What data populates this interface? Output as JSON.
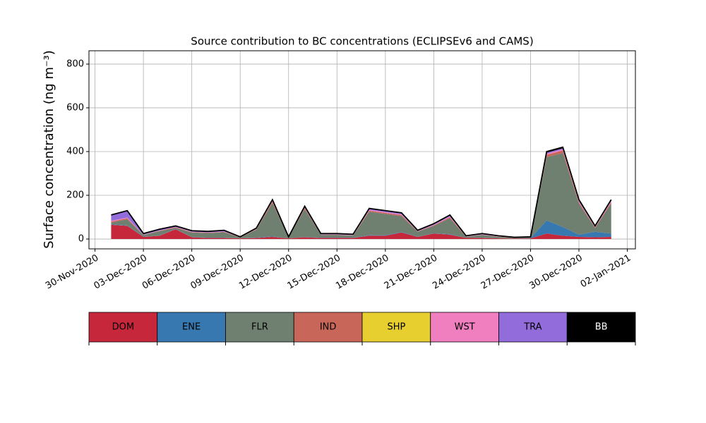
{
  "chart_data": {
    "type": "stacked_area",
    "title": "Source contribution to BC concentrations (ECLIPSEv6 and CAMS)",
    "y_label": "Surface concentration (ng m⁻³)",
    "x": [
      "2020-12-01",
      "2020-12-02",
      "2020-12-03",
      "2020-12-04",
      "2020-12-05",
      "2020-12-06",
      "2020-12-07",
      "2020-12-08",
      "2020-12-09",
      "2020-12-10",
      "2020-12-11",
      "2020-12-12",
      "2020-12-13",
      "2020-12-14",
      "2020-12-15",
      "2020-12-16",
      "2020-12-17",
      "2020-12-18",
      "2020-12-19",
      "2020-12-20",
      "2020-12-21",
      "2020-12-22",
      "2020-12-23",
      "2020-12-24",
      "2020-12-25",
      "2020-12-26",
      "2020-12-27",
      "2020-12-28",
      "2020-12-29",
      "2020-12-30",
      "2020-12-31",
      "2021-01-01"
    ],
    "series": [
      {
        "name": "DOM",
        "color": "#c6273a",
        "values": [
          65,
          60,
          10,
          15,
          45,
          8,
          5,
          5,
          3,
          5,
          10,
          3,
          8,
          5,
          5,
          5,
          15,
          15,
          30,
          10,
          25,
          20,
          5,
          5,
          3,
          2,
          3,
          25,
          15,
          10,
          8,
          10
        ]
      },
      {
        "name": "ENE",
        "color": "#3878b0",
        "values": [
          2,
          2,
          1,
          1,
          1,
          1,
          1,
          1,
          0,
          1,
          2,
          0,
          1,
          1,
          1,
          1,
          2,
          2,
          2,
          1,
          1,
          2,
          0,
          1,
          0,
          0,
          1,
          60,
          40,
          10,
          25,
          15
        ]
      },
      {
        "name": "FLR",
        "color": "#6f8070",
        "values": [
          8,
          28,
          7,
          20,
          5,
          21,
          21,
          25,
          4,
          37,
          153,
          4,
          128,
          13,
          13,
          10,
          108,
          98,
          73,
          22,
          34,
          73,
          5,
          13,
          7,
          3,
          3,
          290,
          338,
          142,
          17,
          138
        ]
      },
      {
        "name": "IND",
        "color": "#c8665a",
        "values": [
          5,
          5,
          1,
          2,
          3,
          2,
          2,
          2,
          1,
          2,
          6,
          1,
          5,
          1,
          1,
          1,
          5,
          5,
          5,
          2,
          3,
          5,
          1,
          1,
          1,
          1,
          1,
          10,
          12,
          6,
          3,
          6
        ]
      },
      {
        "name": "SHP",
        "color": "#e6cf2e",
        "values": [
          0,
          0,
          0,
          0,
          0,
          0,
          0,
          0,
          0,
          0,
          0,
          0,
          0,
          0,
          0,
          0,
          0,
          0,
          0,
          0,
          0,
          0,
          0,
          0,
          0,
          0,
          0,
          0,
          0,
          0,
          0,
          0
        ]
      },
      {
        "name": "WST",
        "color": "#f07fbf",
        "values": [
          3,
          3,
          1,
          1,
          1,
          1,
          1,
          1,
          0,
          1,
          3,
          0,
          3,
          1,
          1,
          1,
          3,
          3,
          3,
          1,
          2,
          3,
          1,
          1,
          1,
          0,
          0,
          5,
          5,
          4,
          2,
          4
        ]
      },
      {
        "name": "TRA",
        "color": "#936cdb",
        "values": [
          25,
          30,
          4,
          5,
          4,
          4,
          4,
          5,
          1,
          3,
          4,
          1,
          3,
          3,
          3,
          3,
          5,
          5,
          5,
          3,
          4,
          5,
          2,
          3,
          2,
          1,
          1,
          5,
          5,
          5,
          3,
          4
        ]
      },
      {
        "name": "BB",
        "color": "#000000",
        "values": [
          2,
          2,
          1,
          1,
          1,
          1,
          1,
          1,
          1,
          1,
          2,
          1,
          2,
          1,
          1,
          1,
          2,
          2,
          2,
          1,
          1,
          2,
          1,
          1,
          1,
          1,
          1,
          5,
          5,
          3,
          2,
          3
        ]
      }
    ],
    "xlim": [
      "2020-11-29T15:00",
      "2021-01-02T12:00"
    ],
    "xticks": [
      {
        "value": "2020-11-30",
        "label": "30-Nov-2020"
      },
      {
        "value": "2020-12-03",
        "label": "03-Dec-2020"
      },
      {
        "value": "2020-12-06",
        "label": "06-Dec-2020"
      },
      {
        "value": "2020-12-09",
        "label": "09-Dec-2020"
      },
      {
        "value": "2020-12-12",
        "label": "12-Dec-2020"
      },
      {
        "value": "2020-12-15",
        "label": "15-Dec-2020"
      },
      {
        "value": "2020-12-18",
        "label": "18-Dec-2020"
      },
      {
        "value": "2020-12-21",
        "label": "21-Dec-2020"
      },
      {
        "value": "2020-12-24",
        "label": "24-Dec-2020"
      },
      {
        "value": "2020-12-27",
        "label": "27-Dec-2020"
      },
      {
        "value": "2020-12-30",
        "label": "30-Dec-2020"
      },
      {
        "value": "2021-01-02",
        "label": "02-Jan-2021"
      }
    ],
    "ylim": [
      -45,
      861
    ],
    "yticks": [
      0,
      200,
      400,
      600,
      800
    ],
    "grid": true
  }
}
